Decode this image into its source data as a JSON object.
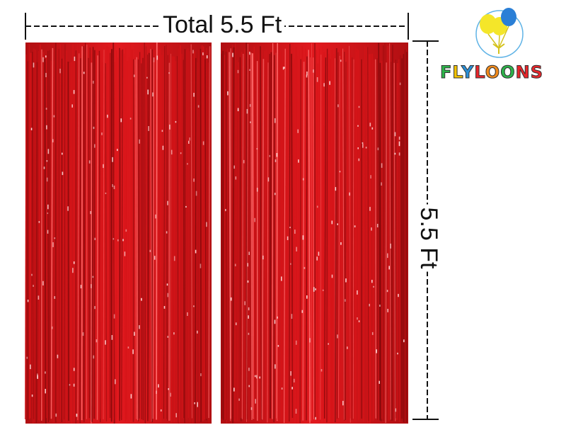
{
  "dimensions": {
    "width_label": "Total 5.5 Ft",
    "height_label": "5.5 Ft"
  },
  "brand": {
    "name": "FLYLOONS",
    "letter_colors": [
      "#2db34a",
      "#f2c200",
      "#2a8fd6",
      "#e8262b",
      "#f08a1c",
      "#2db34a",
      "#e8262b",
      "#e8262b"
    ],
    "logo_icon": "balloons-icon"
  },
  "product": {
    "panels": 2,
    "color": "#d61418",
    "color_dark": "#8c0a0c",
    "color_light": "#ff6b6b",
    "material": "foil-fringe-curtain"
  }
}
